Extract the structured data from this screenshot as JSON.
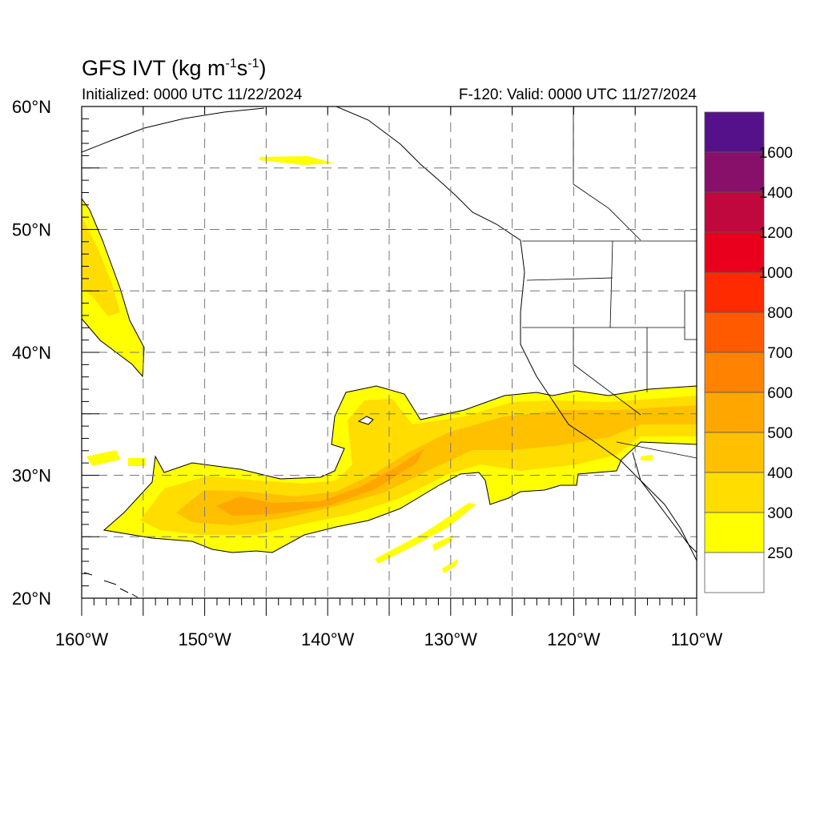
{
  "header": {
    "title_main": "GFS IVT (kg m",
    "title_sup1": "-1",
    "title_mid": "s",
    "title_sup2": "-1",
    "title_end": ")",
    "initialized": "Initialized: 0000 UTC 11/22/2024",
    "valid": "F-120: Valid: 0000 UTC 11/27/2024"
  },
  "map": {
    "lon_range": [
      -160,
      -110
    ],
    "lat_range": [
      20,
      60
    ],
    "lon_labels": [
      "160°W",
      "150°W",
      "140°W",
      "130°W",
      "120°W",
      "110°W"
    ],
    "lat_labels": [
      "60°N",
      "50°N",
      "40°N",
      "30°N",
      "20°N"
    ],
    "gridlines": "dashed",
    "grid_spacing_deg": 5
  },
  "colorbar": {
    "labels": [
      "1600",
      "1400",
      "1200",
      "1000",
      "800",
      "700",
      "600",
      "500",
      "400",
      "300",
      "250"
    ],
    "colors": [
      "#55118a",
      "#880f6a",
      "#c0073e",
      "#e8001c",
      "#ff2a00",
      "#ff5a00",
      "#ff8200",
      "#ffa600",
      "#ffc000",
      "#ffdd00",
      "#ffff00",
      "#ffffff"
    ]
  }
}
